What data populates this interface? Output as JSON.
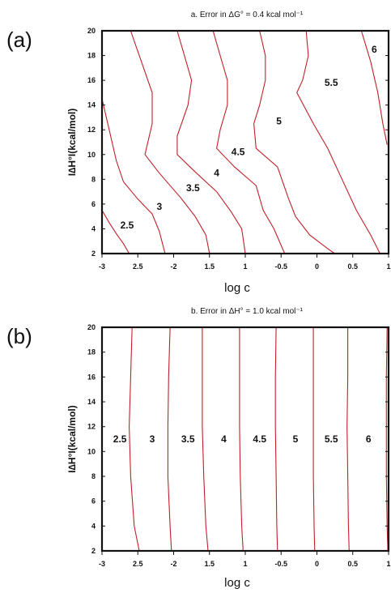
{
  "chart_data": [
    {
      "panel": "(a)",
      "type": "contour",
      "title": "a. Error in ΔG° = 0.4 kcal mol⁻¹",
      "xlabel": "log c",
      "ylabel": "I∆H°I(kcal/mol)",
      "xticks": [
        "-3",
        "2.5",
        "-2",
        "1.5",
        "1",
        "-0.5",
        "0",
        "0.5",
        "1"
      ],
      "yticks": [
        "2",
        "4",
        "6",
        "8",
        "10",
        "12",
        "14",
        "16",
        "18",
        "20"
      ],
      "xlim": [
        -3,
        1
      ],
      "ylim": [
        2,
        20
      ],
      "line_color": "#c0202a",
      "contours": [
        {
          "label": "2.5",
          "label_at": [
            -2.65,
            4.3
          ],
          "points": [
            [
              -3,
              5.5
            ],
            [
              -2.9,
              4.5
            ],
            [
              -2.8,
              3.6
            ],
            [
              -2.7,
              2.8
            ],
            [
              -2.62,
              2
            ]
          ]
        },
        {
          "label": "3",
          "label_at": [
            -2.2,
            5.8
          ],
          "points": [
            [
              -3,
              14.5
            ],
            [
              -2.9,
              12
            ],
            [
              -2.8,
              9.5
            ],
            [
              -2.7,
              7.8
            ],
            [
              -2.5,
              6.4
            ],
            [
              -2.3,
              5.2
            ],
            [
              -2.2,
              3.8
            ],
            [
              -2.12,
              2
            ]
          ]
        },
        {
          "label": "3.5",
          "label_at": [
            -1.73,
            7.3
          ],
          "points": [
            [
              -2.6,
              20
            ],
            [
              -2.45,
              17.5
            ],
            [
              -2.3,
              15
            ],
            [
              -2.3,
              12.5
            ],
            [
              -2.4,
              10
            ],
            [
              -2.2,
              8.5
            ],
            [
              -1.9,
              6.5
            ],
            [
              -1.7,
              5
            ],
            [
              -1.55,
              3.5
            ],
            [
              -1.5,
              2
            ]
          ]
        },
        {
          "label": "4",
          "label_at": [
            -1.4,
            8.5
          ],
          "points": [
            [
              -1.95,
              20
            ],
            [
              -1.85,
              18
            ],
            [
              -1.75,
              16
            ],
            [
              -1.8,
              14
            ],
            [
              -1.95,
              11.5
            ],
            [
              -1.95,
              10
            ],
            [
              -1.7,
              8.6
            ],
            [
              -1.4,
              7
            ],
            [
              -1.2,
              5.4
            ],
            [
              -1.05,
              4
            ],
            [
              -1.0,
              2
            ]
          ]
        },
        {
          "label": "4.5",
          "label_at": [
            -1.1,
            10.2
          ],
          "points": [
            [
              -1.45,
              20
            ],
            [
              -1.35,
              18
            ],
            [
              -1.25,
              16
            ],
            [
              -1.25,
              14
            ],
            [
              -1.35,
              12
            ],
            [
              -1.4,
              10.5
            ],
            [
              -1.15,
              9
            ],
            [
              -0.85,
              7.5
            ],
            [
              -0.75,
              5.5
            ],
            [
              -0.6,
              4
            ],
            [
              -0.45,
              2
            ]
          ]
        },
        {
          "label": "5",
          "label_at": [
            -0.53,
            12.7
          ],
          "points": [
            [
              -0.8,
              20
            ],
            [
              -0.72,
              18
            ],
            [
              -0.72,
              16
            ],
            [
              -0.8,
              14
            ],
            [
              -0.88,
              12.5
            ],
            [
              -0.85,
              10.5
            ],
            [
              -0.55,
              9
            ],
            [
              -0.4,
              6.5
            ],
            [
              -0.3,
              5
            ],
            [
              -0.1,
              3.5
            ],
            [
              0.15,
              2.4
            ],
            [
              0.25,
              2
            ]
          ]
        },
        {
          "label": "5.5",
          "label_at": [
            0.2,
            15.8
          ],
          "points": [
            [
              -0.15,
              20
            ],
            [
              -0.12,
              18
            ],
            [
              -0.2,
              16
            ],
            [
              -0.28,
              15
            ],
            [
              -0.05,
              12.5
            ],
            [
              0.15,
              10.5
            ],
            [
              0.35,
              8
            ],
            [
              0.55,
              5.5
            ],
            [
              0.75,
              3.5
            ],
            [
              0.88,
              2
            ]
          ]
        },
        {
          "label": "6",
          "label_at": [
            0.8,
            18.5
          ],
          "points": [
            [
              0.62,
              20
            ],
            [
              0.75,
              17.5
            ],
            [
              0.85,
              15
            ],
            [
              0.92,
              12.5
            ],
            [
              0.98,
              10.8
            ]
          ]
        }
      ]
    },
    {
      "panel": "(b)",
      "type": "contour",
      "title": "b. Error in ΔH° = 1.0 kcal mol⁻¹",
      "xlabel": "log c",
      "ylabel": "I∆H°I(kcal/mol)",
      "xticks": [
        "-3",
        "2.5",
        "-2",
        "1.5",
        "1",
        "-0.5",
        "0",
        "0.5",
        "1"
      ],
      "yticks": [
        "2",
        "4",
        "6",
        "8",
        "10",
        "12",
        "14",
        "16",
        "18",
        "20"
      ],
      "xlim": [
        -3,
        1
      ],
      "ylim": [
        2,
        20
      ],
      "line_color": "#c0202a",
      "contours": [
        {
          "label": "2.5",
          "label_at": [
            -2.75,
            11
          ],
          "points": [
            [
              -2.58,
              20
            ],
            [
              -2.6,
              16
            ],
            [
              -2.62,
              12
            ],
            [
              -2.6,
              8
            ],
            [
              -2.55,
              4
            ],
            [
              -2.48,
              2
            ]
          ]
        },
        {
          "label": "3",
          "label_at": [
            -2.3,
            11
          ],
          "points": [
            [
              -2.05,
              20
            ],
            [
              -2.07,
              16
            ],
            [
              -2.08,
              12
            ],
            [
              -2.08,
              8
            ],
            [
              -2.05,
              4
            ],
            [
              -2.03,
              2
            ]
          ]
        },
        {
          "label": "3.5",
          "label_at": [
            -1.8,
            11
          ],
          "points": [
            [
              -1.6,
              20
            ],
            [
              -1.6,
              16
            ],
            [
              -1.6,
              12
            ],
            [
              -1.58,
              8
            ],
            [
              -1.55,
              4
            ],
            [
              -1.52,
              2
            ]
          ]
        },
        {
          "label": "4",
          "label_at": [
            -1.3,
            11
          ],
          "points": [
            [
              -1.08,
              20
            ],
            [
              -1.08,
              16
            ],
            [
              -1.08,
              12
            ],
            [
              -1.07,
              8
            ],
            [
              -1.05,
              4
            ],
            [
              -1.03,
              2
            ]
          ]
        },
        {
          "label": "4.5",
          "label_at": [
            -0.8,
            11
          ],
          "points": [
            [
              -0.57,
              20
            ],
            [
              -0.58,
              16
            ],
            [
              -0.58,
              12
            ],
            [
              -0.57,
              8
            ],
            [
              -0.56,
              4
            ],
            [
              -0.55,
              2
            ]
          ]
        },
        {
          "label": "5",
          "label_at": [
            -0.3,
            11
          ],
          "points": [
            [
              -0.05,
              20
            ],
            [
              -0.05,
              16
            ],
            [
              -0.05,
              12
            ],
            [
              -0.05,
              8
            ],
            [
              -0.04,
              4
            ],
            [
              -0.03,
              2
            ]
          ]
        },
        {
          "label": "5.5",
          "label_at": [
            0.2,
            11
          ],
          "points": [
            [
              0.43,
              20
            ],
            [
              0.43,
              16
            ],
            [
              0.42,
              12
            ],
            [
              0.43,
              8
            ],
            [
              0.44,
              4
            ],
            [
              0.45,
              2
            ]
          ]
        },
        {
          "label": "6",
          "label_at": [
            0.72,
            11
          ],
          "points": [
            [
              0.98,
              20
            ],
            [
              0.97,
              16
            ],
            [
              0.97,
              12
            ],
            [
              0.97,
              8
            ],
            [
              0.98,
              4
            ],
            [
              0.99,
              2
            ]
          ]
        }
      ]
    }
  ]
}
